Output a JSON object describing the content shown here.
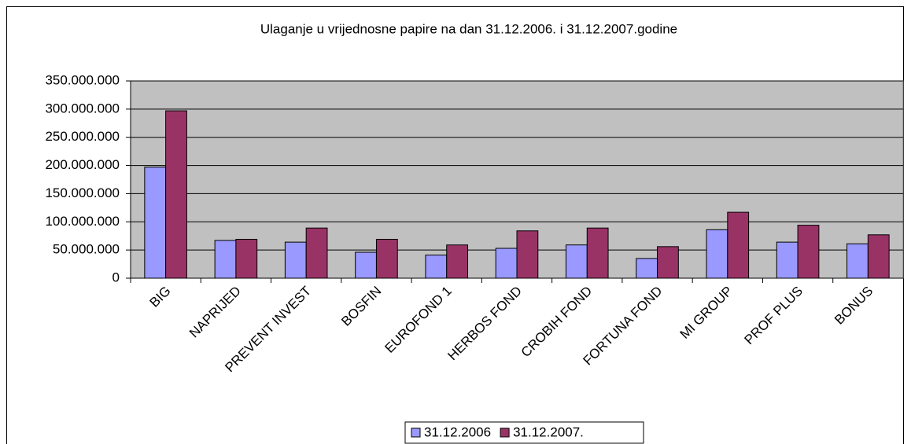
{
  "chart_data": {
    "type": "bar",
    "title": "Ulaganje u vrijednosne papire na dan 31.12.2006. i 31.12.2007.godine",
    "categories": [
      "BIG",
      "NAPRIJED",
      "PREVENT INVEST",
      "BOSFIN",
      "EUROFOND 1",
      "HERBOS FOND",
      "CROBIH FOND",
      "FORTUNA FOND",
      "MI GROUP",
      "PROF PLUS",
      "BONUS"
    ],
    "series": [
      {
        "name": "31.12.2006",
        "color": "#9999ff",
        "values": [
          197000000,
          67000000,
          64000000,
          46000000,
          41000000,
          53000000,
          59000000,
          35000000,
          86000000,
          64000000,
          61000000
        ]
      },
      {
        "name": "31.12.2007.",
        "color": "#993366",
        "values": [
          297000000,
          69000000,
          89000000,
          69000000,
          59000000,
          84000000,
          89000000,
          56000000,
          117000000,
          94000000,
          77000000
        ]
      }
    ],
    "ylim": [
      0,
      350000000
    ],
    "yticks": [
      0,
      {
        "value": 50000000,
        "label": "50.000.000"
      },
      {
        "value": 100000000,
        "label": "100.000.000"
      },
      {
        "value": 150000000,
        "label": "150.000.000"
      },
      {
        "value": 200000000,
        "label": "200.000.000"
      },
      {
        "value": 250000000,
        "label": "250.000.000"
      },
      {
        "value": 300000000,
        "label": "300.000.000"
      },
      {
        "value": 350000000,
        "label": "350.000.000"
      }
    ],
    "grid": true,
    "legend": "bottom"
  }
}
